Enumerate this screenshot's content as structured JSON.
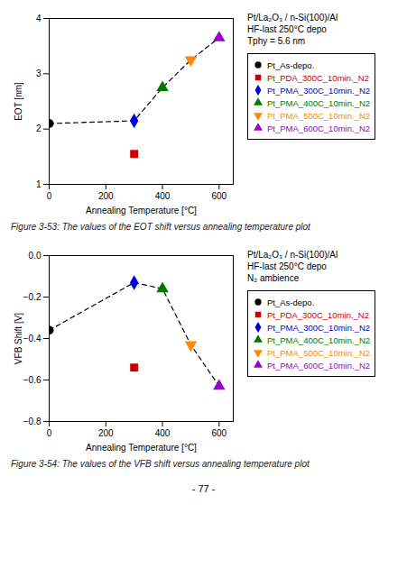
{
  "chart_data": [
    {
      "type": "scatter",
      "xlabel": "Annealing Temperature [°C]",
      "ylabel": "EOT [nm]",
      "xlim": [
        0,
        650
      ],
      "ylim": [
        1,
        4
      ],
      "xticks": [
        0,
        200,
        400,
        600
      ],
      "yticks": [
        1,
        2,
        3,
        4
      ],
      "grid": false,
      "legend": "right",
      "curve": {
        "x": [
          0,
          300,
          400,
          500,
          600
        ],
        "values": [
          2.1,
          2.15,
          2.75,
          3.25,
          3.65
        ],
        "color": "#000000",
        "line_style": "dashed"
      },
      "series": [
        {
          "name": "Pt_As-depo.",
          "color": "#000000",
          "marker": "circle",
          "x": [
            0
          ],
          "values": [
            2.1
          ]
        },
        {
          "name": "Pt_PDA_300C_10min._N2",
          "color": "#cc0000",
          "marker": "square",
          "x": [
            300
          ],
          "values": [
            1.55
          ]
        },
        {
          "name": "Pt_PMA_300C_10min._N2",
          "color": "#0000dd",
          "marker": "diamond",
          "x": [
            300
          ],
          "values": [
            2.15
          ]
        },
        {
          "name": "Pt_PMA_400C_10min._N2",
          "color": "#007700",
          "marker": "triangle-up",
          "x": [
            400
          ],
          "values": [
            2.75
          ]
        },
        {
          "name": "Pt_PMA_500C_10min._N2",
          "color": "#ff8800",
          "marker": "triangle-down",
          "x": [
            500
          ],
          "values": [
            3.25
          ]
        },
        {
          "name": "Pt_PMA_600C_10min._N2",
          "color": "#9900cc",
          "marker": "triangle-up",
          "x": [
            600
          ],
          "values": [
            3.65
          ]
        }
      ],
      "annotations": [
        "Pt/La₂O₃ / n-Si(100)/Al",
        "HF-last 250°C depo",
        "Tphy = 5.6 nm"
      ],
      "caption": "Figure 3-53: The values of the EOT shift versus annealing temperature plot"
    },
    {
      "type": "scatter",
      "xlabel": "Annealing Temperature [°C]",
      "ylabel": "VFB Shift [V]",
      "xlim": [
        0,
        650
      ],
      "ylim": [
        -0.8,
        0
      ],
      "xticks": [
        0,
        200,
        400,
        600
      ],
      "yticks": [
        -0.8,
        -0.6,
        -0.4,
        -0.2,
        {
          "value": 0,
          "label": "0.0"
        }
      ],
      "grid": false,
      "legend": "right",
      "curve": {
        "x": [
          0,
          300,
          400,
          500,
          600
        ],
        "values": [
          -0.36,
          -0.13,
          -0.16,
          -0.43,
          -0.63
        ],
        "color": "#000000",
        "line_style": "dashed"
      },
      "series": [
        {
          "name": "Pt_As-depo.",
          "color": "#000000",
          "marker": "circle",
          "x": [
            0
          ],
          "values": [
            -0.36
          ]
        },
        {
          "name": "Pt_PDA_300C_10min._N2",
          "color": "#cc0000",
          "marker": "square",
          "x": [
            300
          ],
          "values": [
            -0.54
          ]
        },
        {
          "name": "Pt_PMA_300C_10min._N2",
          "color": "#0000dd",
          "marker": "diamond",
          "x": [
            300
          ],
          "values": [
            -0.13
          ]
        },
        {
          "name": "Pt_PMA_400C_10min._N2",
          "color": "#007700",
          "marker": "triangle-up",
          "x": [
            400
          ],
          "values": [
            -0.16
          ]
        },
        {
          "name": "Pt_PMA_500C_10min._N2",
          "color": "#ff8800",
          "marker": "triangle-down",
          "x": [
            500
          ],
          "values": [
            -0.43
          ]
        },
        {
          "name": "Pt_PMA_600C_10min._N2",
          "color": "#9900cc",
          "marker": "triangle-up",
          "x": [
            600
          ],
          "values": [
            -0.63
          ]
        }
      ],
      "annotations": [
        "Pt/La₂O₃ / n-Si(100)/Al",
        "HF-last 250°C depo",
        "N₂ ambience"
      ],
      "caption": "Figure 3-54: The values of the VFB shift versus annealing temperature plot"
    }
  ],
  "page_number": "- 77 -"
}
